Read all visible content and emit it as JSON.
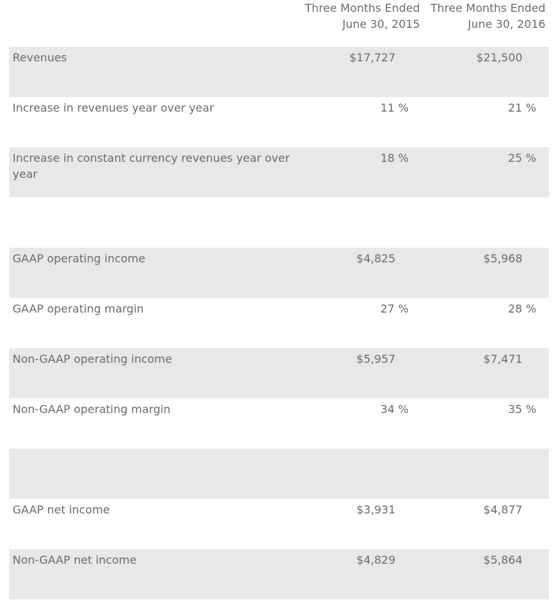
{
  "header": {
    "col1": [
      "Three Months Ended",
      "June 30, 2015"
    ],
    "col2": [
      "Three Months Ended",
      "June 30, 2016"
    ]
  },
  "rows": [
    {
      "label": "Revenues",
      "v1": "$17,727",
      "v2": "$21,500",
      "shade": true,
      "pct": false
    },
    {
      "label": "Increase in revenues year over year",
      "v1": "11 %",
      "v2": "21 %",
      "shade": false,
      "pct": true
    },
    {
      "label": "Increase in constant currency revenues year over year",
      "v1": "18 %",
      "v2": "25 %",
      "shade": true,
      "pct": true
    },
    {
      "label": "",
      "v1": "",
      "v2": "",
      "shade": false,
      "pct": false
    },
    {
      "label": "GAAP operating income",
      "v1": "$4,825",
      "v2": "$5,968",
      "shade": true,
      "pct": false
    },
    {
      "label": "GAAP operating margin",
      "v1": "27 %",
      "v2": "28 %",
      "shade": false,
      "pct": true
    },
    {
      "label": "Non-GAAP operating income",
      "v1": "$5,957",
      "v2": "$7,471",
      "shade": true,
      "pct": false
    },
    {
      "label": "Non-GAAP operating margin",
      "v1": "34 %",
      "v2": "35 %",
      "shade": false,
      "pct": true
    },
    {
      "label": "",
      "v1": "",
      "v2": "",
      "shade": true,
      "pct": false
    },
    {
      "label": "GAAP net income",
      "v1": "$3,931",
      "v2": "$4,877",
      "shade": false,
      "pct": false
    },
    {
      "label": "Non-GAAP net income",
      "v1": "$4,829",
      "v2": "$5,864",
      "shade": true,
      "pct": false
    }
  ]
}
